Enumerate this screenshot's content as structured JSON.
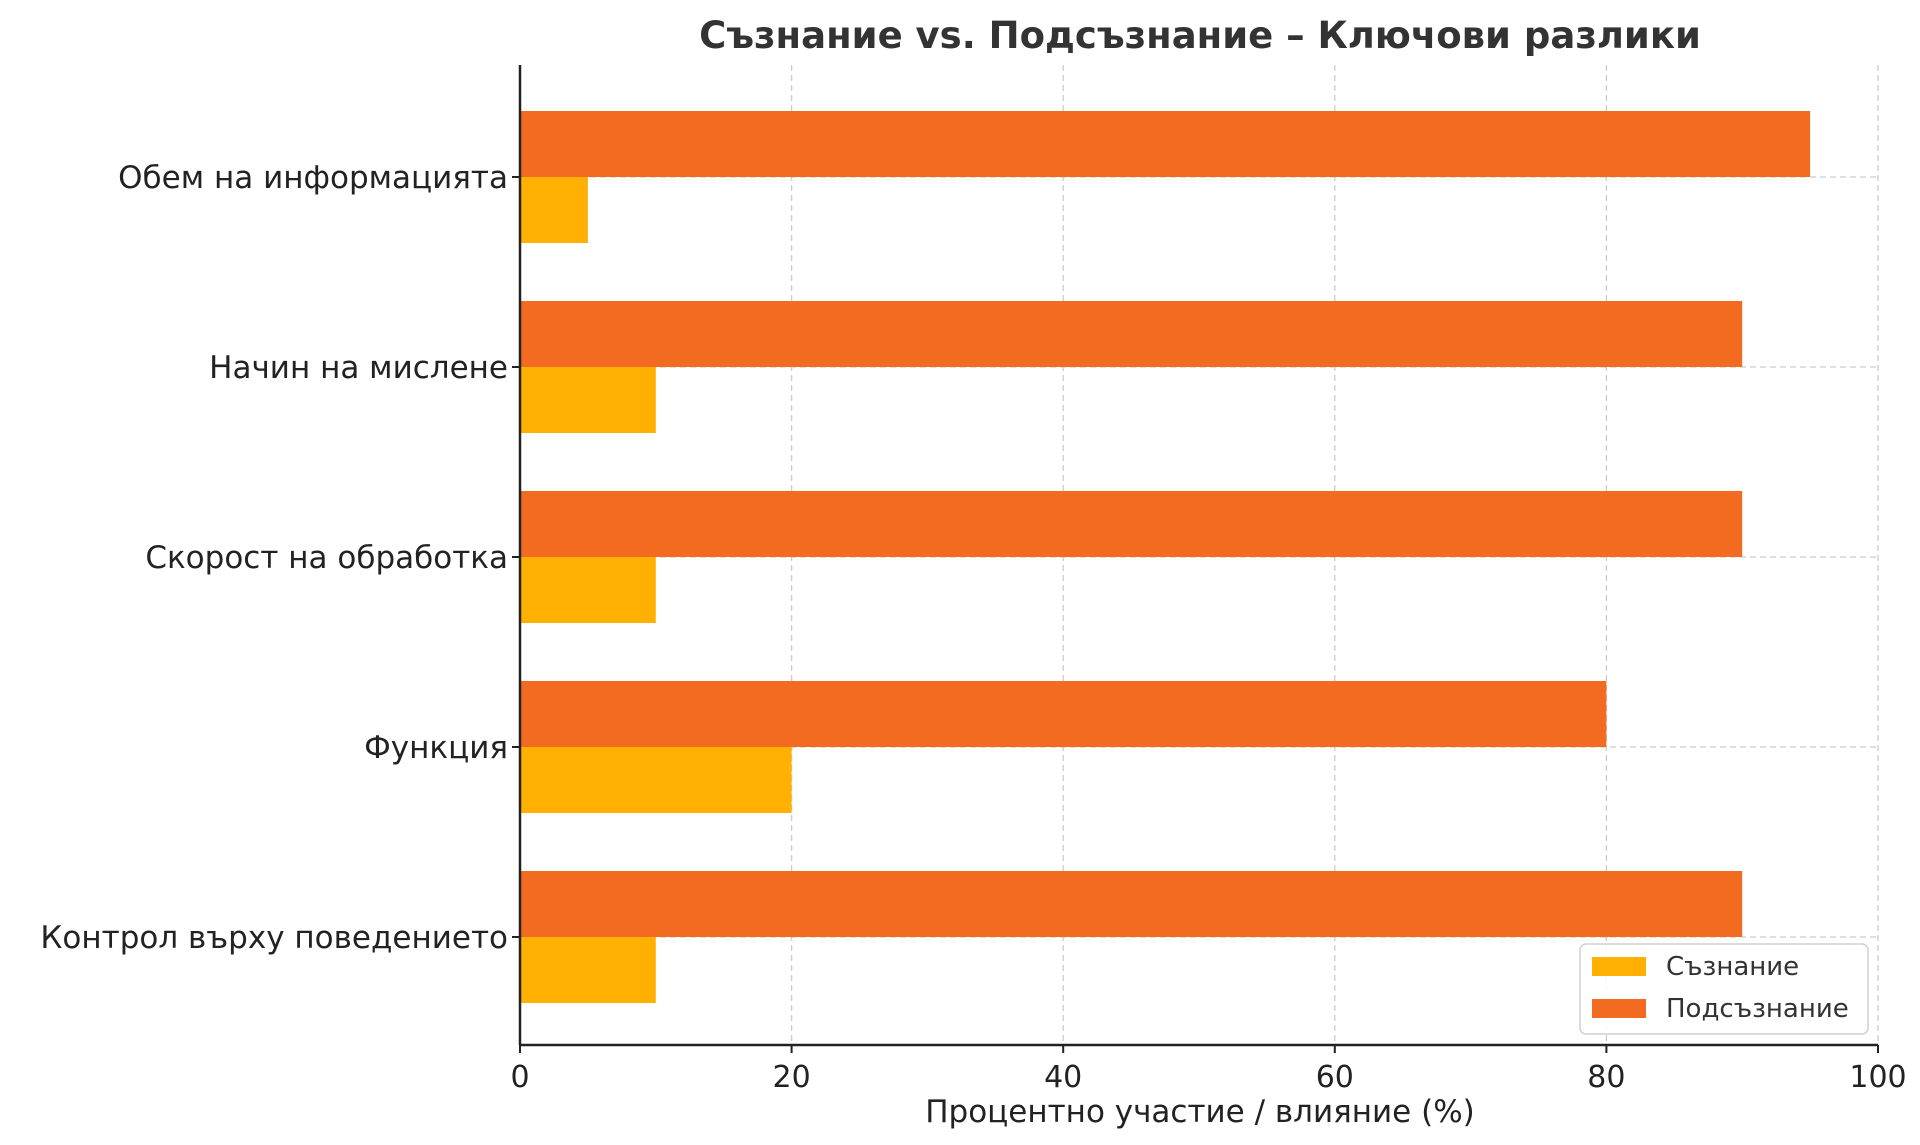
{
  "chart_data": {
    "type": "bar",
    "orientation": "horizontal",
    "title": "Съзнание vs. Подсъзнание – Ключови разлики",
    "xlabel": "Процентно участие / влияние (%)",
    "ylabel": "",
    "categories": [
      "Обем на информацията",
      "Начин на мислене",
      "Скорост на обработка",
      "Функция",
      "Контрол върху поведението"
    ],
    "series": [
      {
        "name": "Съзнание",
        "color": "#FFB000",
        "values": [
          5,
          10,
          10,
          20,
          10
        ]
      },
      {
        "name": "Подсъзнание",
        "color": "#F26B21",
        "values": [
          95,
          90,
          90,
          80,
          90
        ]
      }
    ],
    "xlim": [
      0,
      100
    ],
    "xticks": [
      "0",
      "20",
      "40",
      "60",
      "80",
      "100"
    ],
    "grid": true,
    "legend_position": "bottom-right"
  }
}
